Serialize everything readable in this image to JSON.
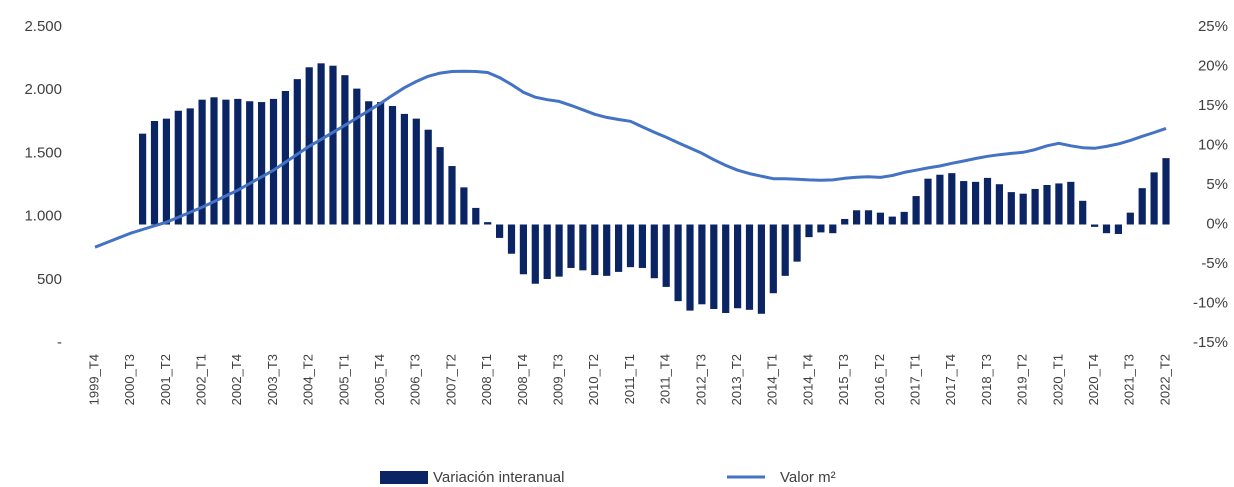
{
  "chart_data": {
    "type": "bar",
    "categories": [
      "1999_T4",
      null,
      null,
      "2000_T3",
      null,
      null,
      "2001_T2",
      null,
      null,
      "2002_T1",
      null,
      null,
      "2002_T4",
      null,
      null,
      "2003_T3",
      null,
      null,
      "2004_T2",
      null,
      null,
      "2005_T1",
      null,
      null,
      "2005_T4",
      null,
      null,
      "2006_T3",
      null,
      null,
      "2007_T2",
      null,
      null,
      "2008_T1",
      null,
      null,
      "2008_T4",
      null,
      null,
      "2009_T3",
      null,
      null,
      "2010_T2",
      null,
      null,
      "2011_T1",
      null,
      null,
      "2011_T4",
      null,
      null,
      "2012_T3",
      null,
      null,
      "2013_T2",
      null,
      null,
      "2014_T1",
      null,
      null,
      "2014_T4",
      null,
      null,
      "2015_T3",
      null,
      null,
      "2016_T2",
      null,
      null,
      "2017_T1",
      null,
      null,
      "2017_T4",
      null,
      null,
      "2018_T3",
      null,
      null,
      "2019_T2",
      null,
      null,
      "2020_T1",
      null,
      null,
      "2020_T4",
      null,
      null,
      "2021_T3",
      null,
      null,
      "2022_T2"
    ],
    "series": [
      {
        "name": "Variación interanual",
        "type": "bar",
        "axis": "y2",
        "color": "#0b2463",
        "values": [
          null,
          null,
          null,
          null,
          11.5,
          13.1,
          13.4,
          14.4,
          14.7,
          15.8,
          16.1,
          15.8,
          15.9,
          15.6,
          15.5,
          15.9,
          16.9,
          18.4,
          19.9,
          20.4,
          20.1,
          18.9,
          17.2,
          15.6,
          15.5,
          15.0,
          14.0,
          13.4,
          12.0,
          9.8,
          7.4,
          4.7,
          2.1,
          0.3,
          -1.7,
          -3.7,
          -6.3,
          -7.5,
          -6.9,
          -6.6,
          -5.5,
          -5.8,
          -6.4,
          -6.5,
          -6.0,
          -5.4,
          -5.5,
          -6.8,
          -7.9,
          -9.7,
          -10.9,
          -10.1,
          -10.7,
          -11.2,
          -10.6,
          -10.8,
          -11.3,
          -8.7,
          -6.5,
          -4.7,
          -1.6,
          -1.0,
          -1.1,
          0.7,
          1.8,
          1.8,
          1.5,
          1.0,
          1.6,
          3.6,
          5.8,
          6.3,
          6.5,
          5.5,
          5.4,
          5.9,
          5.1,
          4.1,
          3.9,
          4.5,
          5.0,
          5.2,
          5.4,
          3.0,
          -0.3,
          -1.1,
          -1.2,
          1.5,
          4.6,
          6.6,
          8.4
        ]
      },
      {
        "name": "Valor m²",
        "type": "line",
        "axis": "y",
        "color": "#4472c4",
        "values": [
          758,
          795,
          832,
          869,
          898,
          927,
          956,
          995,
          1035,
          1074,
          1119,
          1164,
          1209,
          1262,
          1314,
          1367,
          1430,
          1493,
          1556,
          1611,
          1667,
          1722,
          1780,
          1838,
          1896,
          1960,
          2020,
          2069,
          2110,
          2135,
          2148,
          2150,
          2148,
          2140,
          2100,
          2045,
          1983,
          1945,
          1925,
          1911,
          1880,
          1845,
          1809,
          1785,
          1768,
          1754,
          1710,
          1668,
          1627,
          1585,
          1543,
          1501,
          1450,
          1405,
          1367,
          1340,
          1320,
          1300,
          1300,
          1295,
          1290,
          1288,
          1290,
          1303,
          1312,
          1316,
          1310,
          1325,
          1350,
          1367,
          1385,
          1400,
          1422,
          1440,
          1460,
          1477,
          1490,
          1500,
          1509,
          1530,
          1560,
          1580,
          1560,
          1545,
          1540,
          1555,
          1575,
          1603,
          1635,
          1665,
          1698
        ]
      }
    ],
    "ylim": [
      0,
      2500
    ],
    "yticks": [
      {
        "value": 0,
        "label": "-"
      },
      500,
      {
        "value": 1000,
        "label": "1.000"
      },
      {
        "value": 1500,
        "label": "1.500"
      },
      {
        "value": 2000,
        "label": "2.000"
      },
      {
        "value": 2500,
        "label": "2.500"
      }
    ],
    "y2lim": [
      -15,
      25
    ],
    "y2ticks": [
      {
        "value": -15,
        "label": "-15%"
      },
      {
        "value": -10,
        "label": "-10%"
      },
      {
        "value": -5,
        "label": "-5%"
      },
      {
        "value": 0,
        "label": "0%"
      },
      {
        "value": 5,
        "label": "5%"
      },
      {
        "value": 10,
        "label": "10%"
      },
      {
        "value": 15,
        "label": "15%"
      },
      {
        "value": 20,
        "label": "20%"
      },
      {
        "value": 25,
        "label": "25%"
      }
    ],
    "grid": false,
    "legend": "bottom"
  }
}
